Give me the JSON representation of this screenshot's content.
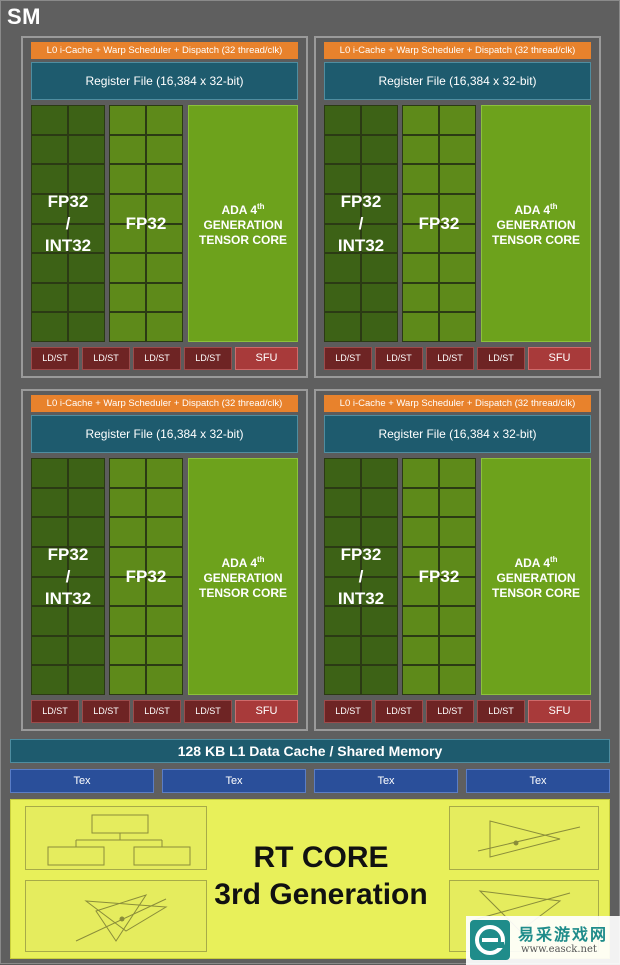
{
  "sm": {
    "title": "SM"
  },
  "quadrants": [
    {
      "l0": "L0 i-Cache + Warp Scheduler + Dispatch (32 thread/clk)",
      "register_file": "Register File (16,384 x 32-bit)",
      "fpint": {
        "line1": "FP32",
        "line2": "/",
        "line3": "INT32"
      },
      "fp32": "FP32",
      "tensor": {
        "line1": "ADA 4",
        "sup": "th",
        "line2": "GENERATION",
        "line3": "TENSOR CORE"
      },
      "units": [
        "LD/ST",
        "LD/ST",
        "LD/ST",
        "LD/ST"
      ],
      "sfu": "SFU"
    },
    {
      "l0": "L0 i-Cache + Warp Scheduler + Dispatch (32 thread/clk)",
      "register_file": "Register File (16,384 x 32-bit)",
      "fpint": {
        "line1": "FP32",
        "line2": "/",
        "line3": "INT32"
      },
      "fp32": "FP32",
      "tensor": {
        "line1": "ADA 4",
        "sup": "th",
        "line2": "GENERATION",
        "line3": "TENSOR CORE"
      },
      "units": [
        "LD/ST",
        "LD/ST",
        "LD/ST",
        "LD/ST"
      ],
      "sfu": "SFU"
    },
    {
      "l0": "L0 i-Cache + Warp Scheduler + Dispatch (32 thread/clk)",
      "register_file": "Register File (16,384 x 32-bit)",
      "fpint": {
        "line1": "FP32",
        "line2": "/",
        "line3": "INT32"
      },
      "fp32": "FP32",
      "tensor": {
        "line1": "ADA 4",
        "sup": "th",
        "line2": "GENERATION",
        "line3": "TENSOR CORE"
      },
      "units": [
        "LD/ST",
        "LD/ST",
        "LD/ST",
        "LD/ST"
      ],
      "sfu": "SFU"
    },
    {
      "l0": "L0 i-Cache + Warp Scheduler + Dispatch (32 thread/clk)",
      "register_file": "Register File (16,384 x 32-bit)",
      "fpint": {
        "line1": "FP32",
        "line2": "/",
        "line3": "INT32"
      },
      "fp32": "FP32",
      "tensor": {
        "line1": "ADA 4",
        "sup": "th",
        "line2": "GENERATION",
        "line3": "TENSOR CORE"
      },
      "units": [
        "LD/ST",
        "LD/ST",
        "LD/ST",
        "LD/ST"
      ],
      "sfu": "SFU"
    }
  ],
  "l1_cache": "128 KB L1 Data Cache / Shared Memory",
  "tex_units": [
    "Tex",
    "Tex",
    "Tex",
    "Tex"
  ],
  "rt_core": {
    "line1": "RT CORE",
    "line2": "3rd Generation"
  },
  "watermark": {
    "chinese": "易采游戏网",
    "url": "www.easck.net"
  },
  "colors": {
    "l0": "#e8822c",
    "register_file": "#1e5b6e",
    "fp32_int32": "#3d6216",
    "fp32": "#5e8a1a",
    "tensor": "#6da21c",
    "ldst": "#6e2424",
    "sfu": "#a83a3a",
    "tex": "#2a4f9a",
    "rt_core": "#e8f05a"
  }
}
